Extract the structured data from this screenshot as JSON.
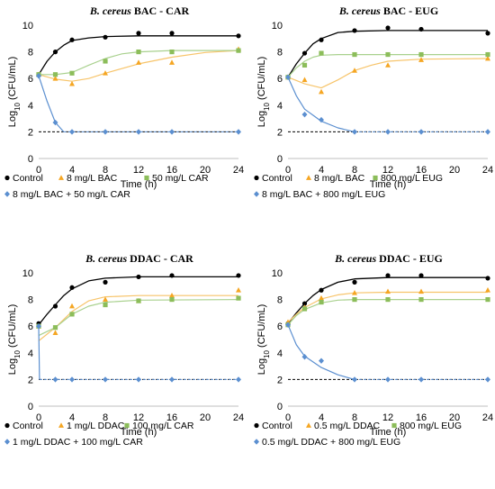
{
  "colors": {
    "control": "#000000",
    "single": "#f5a623",
    "single_line": "#f7c46a",
    "natural": "#8cbd5a",
    "natural_line": "#a9d18e",
    "combo": "#5b8fd0",
    "threshold": "#000000",
    "gridline": "#d9d9d9"
  },
  "chart_data": [
    {
      "type": "scatter",
      "title": {
        "italic": "B. cereus",
        "rest": " BAC - CAR"
      },
      "xlabel": "Time (h)",
      "ylabel_main": "Log",
      "ylabel_sub": "10",
      "ylabel_rest": " (CFU/mL)",
      "xticks": [
        "0",
        "4",
        "8",
        "12",
        "16",
        "20",
        "24"
      ],
      "yticks": [
        "0",
        "2",
        "4",
        "6",
        "8",
        "10"
      ],
      "xlim": [
        0,
        24
      ],
      "ylim": [
        0,
        10
      ],
      "detection_limit": 2,
      "series": [
        {
          "name": "Control",
          "role": "control",
          "marker": "circle",
          "x": [
            0,
            2,
            4,
            8,
            12,
            16,
            24
          ],
          "y": [
            6.3,
            8.0,
            8.9,
            9.1,
            9.4,
            9.4,
            9.2
          ],
          "fit": [
            [
              0,
              6.3
            ],
            [
              1,
              7.3
            ],
            [
              2,
              8.0
            ],
            [
              3,
              8.5
            ],
            [
              4,
              8.85
            ],
            [
              6,
              9.05
            ],
            [
              8,
              9.15
            ],
            [
              12,
              9.2
            ],
            [
              16,
              9.2
            ],
            [
              24,
              9.2
            ]
          ]
        },
        {
          "name": "8 mg/L BAC",
          "role": "single",
          "marker": "triangle",
          "x": [
            0,
            2,
            4,
            8,
            12,
            16,
            24
          ],
          "y": [
            6.3,
            6.0,
            5.6,
            6.4,
            7.2,
            7.2,
            8.2
          ],
          "fit": [
            [
              0,
              6.3
            ],
            [
              2,
              5.95
            ],
            [
              4,
              5.8
            ],
            [
              6,
              6.0
            ],
            [
              8,
              6.4
            ],
            [
              12,
              7.1
            ],
            [
              16,
              7.6
            ],
            [
              20,
              7.95
            ],
            [
              24,
              8.1
            ]
          ]
        },
        {
          "name": "50 mg/L CAR",
          "role": "natural",
          "marker": "square",
          "x": [
            0,
            2,
            4,
            8,
            12,
            16,
            24
          ],
          "y": [
            6.3,
            6.3,
            6.4,
            7.3,
            8.0,
            8.0,
            8.1
          ],
          "fit": [
            [
              0,
              6.3
            ],
            [
              2,
              6.3
            ],
            [
              4,
              6.45
            ],
            [
              6,
              7.0
            ],
            [
              8,
              7.5
            ],
            [
              10,
              7.85
            ],
            [
              12,
              8.0
            ],
            [
              16,
              8.1
            ],
            [
              24,
              8.1
            ]
          ]
        },
        {
          "name": "8 mg/L BAC + 50 mg/L CAR",
          "role": "combo",
          "marker": "diamond",
          "x": [
            0,
            2,
            4,
            8,
            12,
            16,
            24
          ],
          "y": [
            6.2,
            2.7,
            2.0,
            2.0,
            2.0,
            2.0,
            2.0
          ],
          "fit": [
            [
              0,
              6.2
            ],
            [
              1,
              4.3
            ],
            [
              2,
              2.7
            ],
            [
              3,
              2.0
            ]
          ],
          "tail": true
        }
      ]
    },
    {
      "type": "scatter",
      "title": {
        "italic": "B. cereus",
        "rest": " BAC - EUG"
      },
      "xlabel": "Time (h)",
      "ylabel_main": "Log",
      "ylabel_sub": "10",
      "ylabel_rest": " (CFU/mL)",
      "xticks": [
        "0",
        "4",
        "8",
        "12",
        "16",
        "20",
        "24"
      ],
      "yticks": [
        "0",
        "2",
        "4",
        "6",
        "8",
        "10"
      ],
      "xlim": [
        0,
        24
      ],
      "ylim": [
        0,
        10
      ],
      "detection_limit": 2,
      "series": [
        {
          "name": "Control",
          "role": "control",
          "marker": "circle",
          "x": [
            0,
            2,
            4,
            8,
            12,
            16,
            24
          ],
          "y": [
            6.1,
            7.9,
            8.9,
            9.6,
            9.8,
            9.7,
            9.4
          ],
          "fit": [
            [
              0,
              6.1
            ],
            [
              1,
              7.1
            ],
            [
              2,
              7.9
            ],
            [
              3,
              8.6
            ],
            [
              4,
              9.0
            ],
            [
              6,
              9.45
            ],
            [
              8,
              9.55
            ],
            [
              12,
              9.6
            ],
            [
              24,
              9.6
            ]
          ]
        },
        {
          "name": "8 mg/L BAC",
          "role": "single",
          "marker": "triangle",
          "x": [
            0,
            2,
            4,
            8,
            12,
            16,
            24
          ],
          "y": [
            6.1,
            5.9,
            5.0,
            6.6,
            7.0,
            7.4,
            7.5
          ],
          "fit": [
            [
              0,
              6.1
            ],
            [
              2,
              5.6
            ],
            [
              4,
              5.3
            ],
            [
              6,
              5.9
            ],
            [
              8,
              6.6
            ],
            [
              10,
              7.0
            ],
            [
              12,
              7.3
            ],
            [
              16,
              7.45
            ],
            [
              24,
              7.5
            ]
          ]
        },
        {
          "name": "800 mg/L EUG",
          "role": "natural",
          "marker": "square",
          "x": [
            0,
            2,
            4,
            8,
            12,
            16,
            24
          ],
          "y": [
            6.1,
            7.0,
            7.9,
            7.8,
            7.8,
            7.8,
            7.8
          ],
          "fit": [
            [
              0,
              6.1
            ],
            [
              1,
              6.8
            ],
            [
              2,
              7.3
            ],
            [
              3,
              7.6
            ],
            [
              4,
              7.75
            ],
            [
              6,
              7.8
            ],
            [
              24,
              7.8
            ]
          ]
        },
        {
          "name": "8 mg/L BAC + 800 mg/L EUG",
          "role": "combo",
          "marker": "diamond",
          "x": [
            0,
            2,
            4,
            8,
            12,
            16,
            24
          ],
          "y": [
            6.1,
            3.3,
            2.9,
            2.0,
            2.0,
            2.0,
            2.0
          ],
          "fit": [
            [
              0,
              6.1
            ],
            [
              1,
              4.7
            ],
            [
              2,
              3.7
            ],
            [
              4,
              2.8
            ],
            [
              6,
              2.3
            ],
            [
              8,
              2.0
            ]
          ],
          "tail": true
        }
      ]
    },
    {
      "type": "scatter",
      "title": {
        "italic": "B. cereus",
        "rest": " DDAC - CAR"
      },
      "xlabel": "Time (h)",
      "ylabel_main": "Log",
      "ylabel_sub": "10",
      "ylabel_rest": " (CFU/mL)",
      "xticks": [
        "0",
        "4",
        "8",
        "12",
        "16",
        "20",
        "24"
      ],
      "yticks": [
        "0",
        "2",
        "4",
        "6",
        "8",
        "10"
      ],
      "xlim": [
        0,
        24
      ],
      "ylim": [
        0,
        10
      ],
      "detection_limit": 2,
      "series": [
        {
          "name": "Control",
          "role": "control",
          "marker": "circle",
          "x": [
            0,
            2,
            4,
            8,
            12,
            16,
            24
          ],
          "y": [
            6.2,
            7.5,
            8.9,
            9.3,
            9.7,
            9.8,
            9.8
          ],
          "fit": [
            [
              0,
              6.1
            ],
            [
              1,
              6.9
            ],
            [
              2,
              7.6
            ],
            [
              3,
              8.3
            ],
            [
              4,
              8.8
            ],
            [
              6,
              9.4
            ],
            [
              8,
              9.6
            ],
            [
              12,
              9.7
            ],
            [
              24,
              9.7
            ]
          ]
        },
        {
          "name": "1 mg/L DDAC",
          "role": "single",
          "marker": "triangle",
          "x": [
            0,
            2,
            4,
            8,
            12,
            16,
            24
          ],
          "y": [
            6.0,
            5.5,
            7.5,
            8.0,
            7.9,
            8.3,
            8.7
          ],
          "fit": [
            [
              0,
              4.9
            ],
            [
              2,
              5.9
            ],
            [
              4,
              7.1
            ],
            [
              6,
              7.9
            ],
            [
              8,
              8.2
            ],
            [
              12,
              8.3
            ],
            [
              24,
              8.3
            ]
          ]
        },
        {
          "name": "100 mg/L CAR",
          "role": "natural",
          "marker": "square",
          "x": [
            0,
            2,
            4,
            8,
            12,
            16,
            24
          ],
          "y": [
            6.0,
            5.9,
            6.9,
            7.6,
            7.9,
            8.0,
            8.1
          ],
          "fit": [
            [
              0,
              5.3
            ],
            [
              2,
              5.9
            ],
            [
              4,
              6.9
            ],
            [
              6,
              7.5
            ],
            [
              8,
              7.8
            ],
            [
              12,
              7.95
            ],
            [
              24,
              8.0
            ]
          ]
        },
        {
          "name": "1 mg/L DDAC + 100 mg/L CAR",
          "role": "combo",
          "marker": "diamond",
          "x": [
            0,
            2,
            4,
            8,
            12,
            16,
            24
          ],
          "y": [
            6.0,
            2.0,
            2.0,
            2.0,
            2.0,
            2.0,
            2.0
          ],
          "fit": [
            [
              0,
              6.0
            ],
            [
              0.1,
              2.0
            ]
          ],
          "tail": true
        }
      ]
    },
    {
      "type": "scatter",
      "title": {
        "italic": "B. cereus",
        "rest": " DDAC - EUG"
      },
      "xlabel": "Time (h)",
      "ylabel_main": "Log",
      "ylabel_sub": "10",
      "ylabel_rest": " (CFU/mL)",
      "xticks": [
        "0",
        "4",
        "8",
        "12",
        "16",
        "20",
        "24"
      ],
      "yticks": [
        "0",
        "2",
        "4",
        "6",
        "8",
        "10"
      ],
      "xlim": [
        0,
        24
      ],
      "ylim": [
        0,
        10
      ],
      "detection_limit": 2,
      "series": [
        {
          "name": "Control",
          "role": "control",
          "marker": "circle",
          "x": [
            0,
            2,
            4,
            8,
            12,
            16,
            24
          ],
          "y": [
            6.2,
            7.7,
            8.7,
            9.3,
            9.8,
            9.8,
            9.6
          ],
          "fit": [
            [
              0,
              6.2
            ],
            [
              1,
              7.0
            ],
            [
              2,
              7.7
            ],
            [
              3,
              8.3
            ],
            [
              4,
              8.75
            ],
            [
              6,
              9.3
            ],
            [
              8,
              9.55
            ],
            [
              12,
              9.65
            ],
            [
              24,
              9.65
            ]
          ]
        },
        {
          "name": "0.5 mg/L DDAC",
          "role": "single",
          "marker": "triangle",
          "x": [
            0,
            2,
            4,
            8,
            12,
            16,
            24
          ],
          "y": [
            6.3,
            7.4,
            8.1,
            8.5,
            8.6,
            8.6,
            8.7
          ],
          "fit": [
            [
              0,
              6.3
            ],
            [
              1,
              6.9
            ],
            [
              2,
              7.4
            ],
            [
              4,
              8.05
            ],
            [
              6,
              8.35
            ],
            [
              8,
              8.5
            ],
            [
              12,
              8.55
            ],
            [
              24,
              8.55
            ]
          ]
        },
        {
          "name": "800 mg/L EUG",
          "role": "natural",
          "marker": "square",
          "x": [
            0,
            2,
            4,
            8,
            12,
            16,
            24
          ],
          "y": [
            6.1,
            7.3,
            7.8,
            8.0,
            8.0,
            8.0,
            8.0
          ],
          "fit": [
            [
              0,
              6.1
            ],
            [
              1,
              6.8
            ],
            [
              2,
              7.25
            ],
            [
              4,
              7.75
            ],
            [
              6,
              7.95
            ],
            [
              8,
              8.0
            ],
            [
              24,
              8.0
            ]
          ]
        },
        {
          "name": "0.5 mg/L DDAC + 800 mg/L EUG",
          "role": "combo",
          "marker": "diamond",
          "x": [
            0,
            2,
            4,
            8,
            12,
            16,
            24
          ],
          "y": [
            6.1,
            3.7,
            3.4,
            2.0,
            2.0,
            2.0,
            2.0
          ],
          "fit": [
            [
              0,
              6.1
            ],
            [
              1,
              4.6
            ],
            [
              2,
              3.75
            ],
            [
              4,
              2.9
            ],
            [
              6,
              2.35
            ],
            [
              8,
              2.0
            ]
          ],
          "tail": true
        }
      ]
    }
  ]
}
